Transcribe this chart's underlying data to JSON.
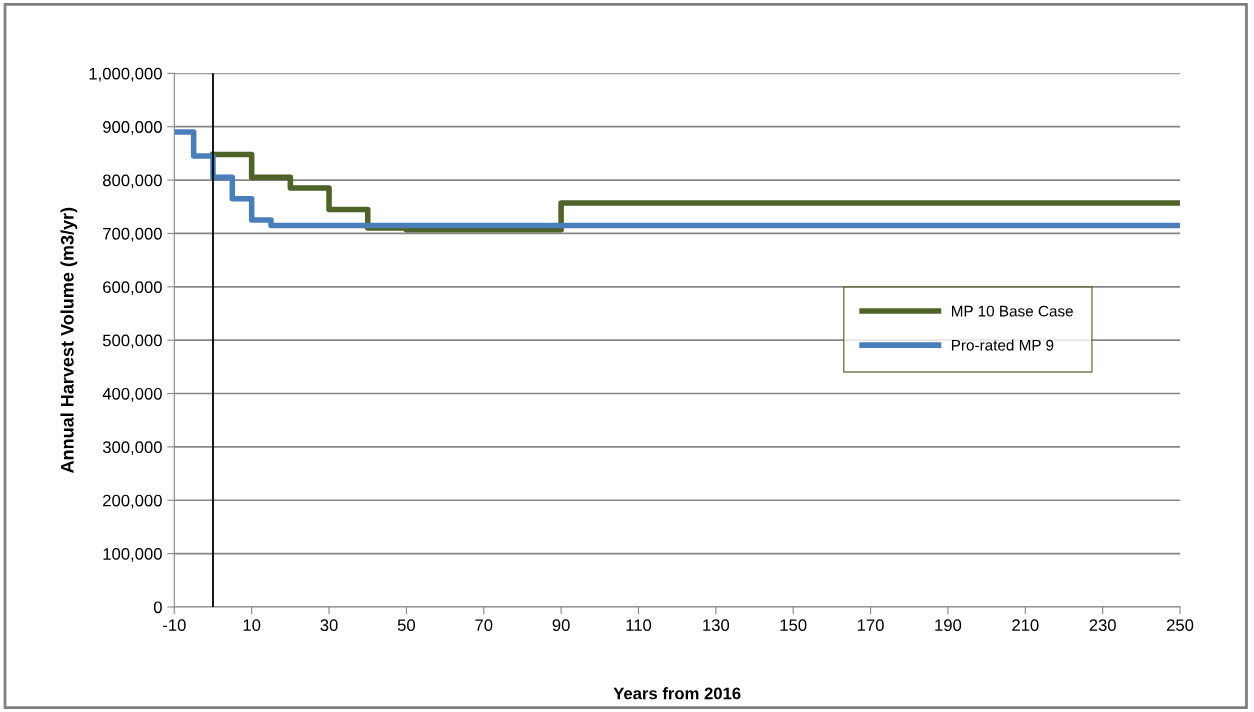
{
  "chart_data": {
    "type": "step",
    "xlabel": "Years from 2016",
    "ylabel": "Annual Harvest Volume (m3/yr)",
    "series": [
      {
        "name": "MP 10 Base Case",
        "color": "#4f6228",
        "x": [
          0,
          10,
          20,
          30,
          40,
          50,
          90,
          250
        ],
        "values": [
          848000,
          805000,
          785000,
          745000,
          710000,
          707000,
          757000,
          757000
        ]
      },
      {
        "name": "Pro-rated MP 9",
        "color": "#4a7ebb",
        "x": [
          -10,
          -5,
          0,
          5,
          10,
          15,
          250
        ],
        "values": [
          890000,
          845000,
          805000,
          765000,
          725000,
          715000,
          715000
        ]
      }
    ],
    "xlim": [
      -10,
      250
    ],
    "xticks": [
      -10,
      10,
      30,
      50,
      70,
      90,
      110,
      130,
      150,
      170,
      190,
      210,
      230,
      250
    ],
    "ylim": [
      0,
      1000000
    ],
    "yticks": [
      0,
      {
        "value": 100000,
        "label": "100,000"
      },
      {
        "value": 200000,
        "label": "200,000"
      },
      {
        "value": 300000,
        "label": "300,000"
      },
      {
        "value": 400000,
        "label": "400,000"
      },
      {
        "value": 500000,
        "label": "500,000"
      },
      {
        "value": 600000,
        "label": "600,000"
      },
      {
        "value": 700000,
        "label": "700,000"
      },
      {
        "value": 800000,
        "label": "800,000"
      },
      {
        "value": 900000,
        "label": "900,000"
      },
      {
        "value": 1000000,
        "label": "1,000,000"
      }
    ],
    "ref_lines": [
      {
        "axis": "x",
        "value": 0,
        "color": "#000000"
      }
    ],
    "grid": "y",
    "legend": "right",
    "line_style": "solid",
    "marker": "none"
  }
}
